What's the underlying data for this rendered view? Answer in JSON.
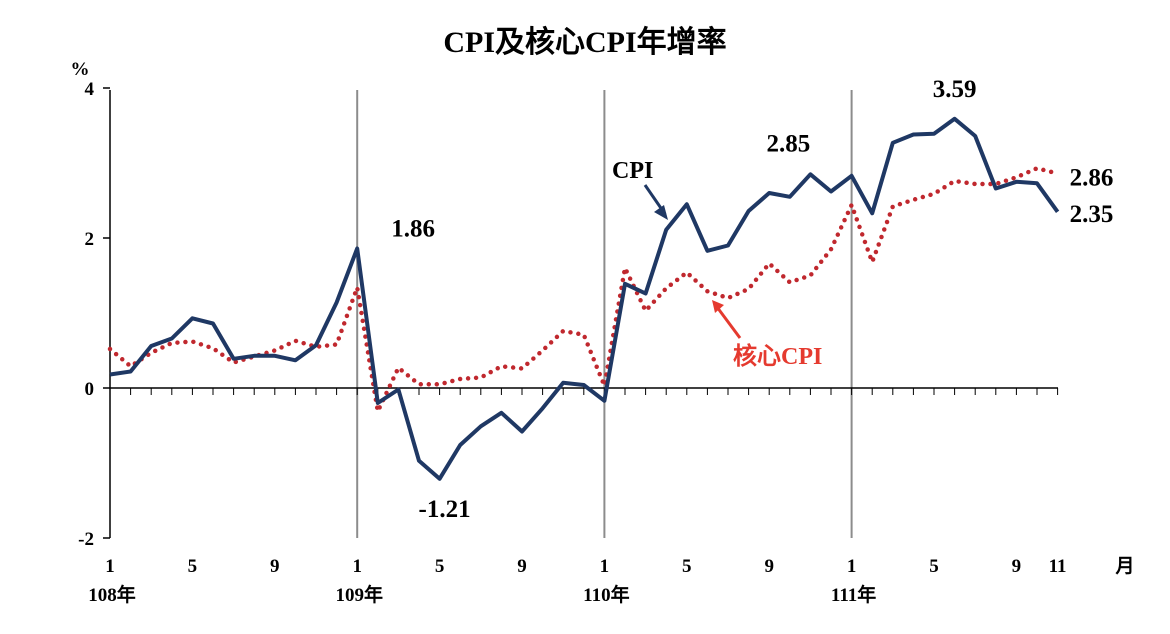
{
  "chart_data": {
    "type": "line",
    "title": "CPI及核心CPI年增率",
    "ylabel": "%",
    "xlabel": "月",
    "ylim": [
      -2,
      4
    ],
    "yticks": [
      "4",
      "2",
      "0",
      "-2"
    ],
    "xtick_labels": [
      "1",
      "5",
      "9",
      "1",
      "5",
      "9",
      "1",
      "5",
      "9",
      "1",
      "5",
      "9",
      "11"
    ],
    "year_labels": [
      "108年",
      "109年",
      "110年",
      "111年"
    ],
    "series": [
      {
        "name": "CPI",
        "color": "#1f3864",
        "style": "solid",
        "values": [
          0.18,
          0.22,
          0.56,
          0.66,
          0.93,
          0.86,
          0.39,
          0.43,
          0.43,
          0.37,
          0.57,
          1.14,
          1.86,
          -0.2,
          -0.02,
          -0.97,
          -1.21,
          -0.76,
          -0.51,
          -0.33,
          -0.58,
          -0.27,
          0.07,
          0.04,
          -0.17,
          1.39,
          1.26,
          2.11,
          2.45,
          1.83,
          1.9,
          2.36,
          2.6,
          2.55,
          2.85,
          2.62,
          2.83,
          2.33,
          3.27,
          3.38,
          3.39,
          3.59,
          3.36,
          2.66,
          2.75,
          2.73,
          2.35
        ]
      },
      {
        "name": "核心CPI",
        "color": "#c0282e",
        "style": "dotted",
        "values": [
          0.52,
          0.29,
          0.47,
          0.6,
          0.62,
          0.53,
          0.34,
          0.42,
          0.5,
          0.63,
          0.55,
          0.58,
          1.34,
          -0.31,
          0.27,
          0.05,
          0.05,
          0.12,
          0.14,
          0.29,
          0.26,
          0.5,
          0.76,
          0.71,
          0.03,
          1.6,
          1.03,
          1.33,
          1.54,
          1.29,
          1.2,
          1.32,
          1.66,
          1.41,
          1.5,
          1.85,
          2.44,
          1.68,
          2.42,
          2.51,
          2.59,
          2.76,
          2.72,
          2.72,
          2.81,
          2.93,
          2.86
        ]
      }
    ],
    "annotations": [
      {
        "text": "1.86",
        "series": "CPI",
        "index": 12,
        "color": "#000000"
      },
      {
        "text": "-1.21",
        "series": "CPI",
        "index": 16,
        "color": "#000000"
      },
      {
        "text": "2.85",
        "series": "CPI",
        "index": 34,
        "color": "#000000"
      },
      {
        "text": "3.59",
        "series": "CPI",
        "index": 41,
        "color": "#000000"
      },
      {
        "text": "2.35",
        "series": "CPI",
        "index": 46,
        "color": "#000000"
      },
      {
        "text": "2.86",
        "series": "核心CPI",
        "index": 46,
        "color": "#e53a2f"
      }
    ],
    "series_labels": [
      {
        "text": "CPI",
        "color": "#000000",
        "arrow_color": "#1f3864"
      },
      {
        "text": "核心CPI",
        "color": "#e53a2f",
        "arrow_color": "#e53a2f"
      }
    ]
  }
}
